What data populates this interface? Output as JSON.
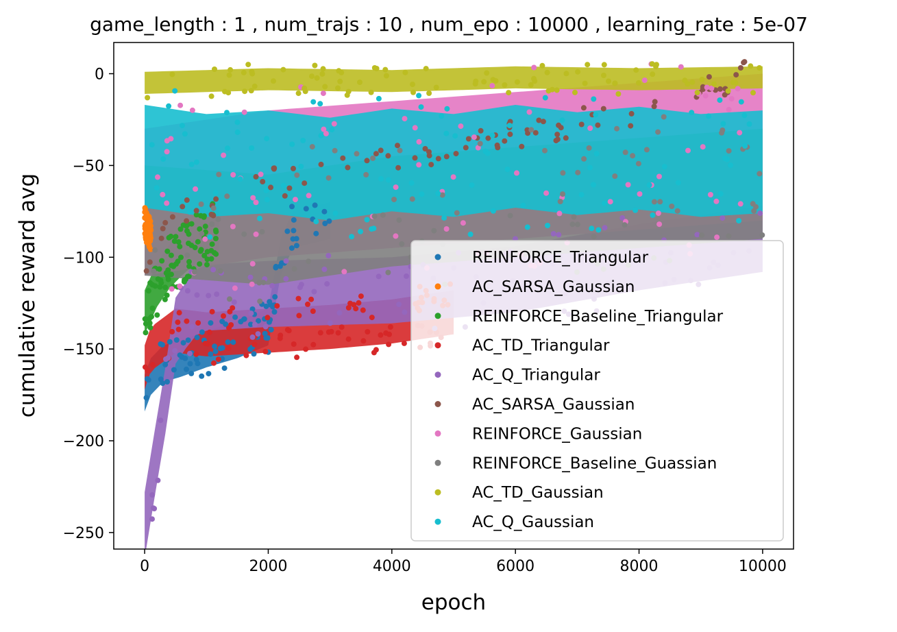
{
  "chart_data": {
    "type": "scatter",
    "title": "game_length : 1 , num_trajs : 10 , num_epo : 10000 , learning_rate : 5e-07",
    "xlabel": "epoch",
    "ylabel": "cumulative reward avg",
    "xlim": [
      -500,
      10500
    ],
    "ylim": [
      -259,
      17
    ],
    "xticks": [
      0,
      2000,
      4000,
      6000,
      8000,
      10000
    ],
    "xtick_labels": [
      "0",
      "2000",
      "4000",
      "6000",
      "8000",
      "10000"
    ],
    "yticks": [
      0,
      -50,
      -100,
      -150,
      -200,
      -250
    ],
    "ytick_labels": [
      "0",
      "−50",
      "−100",
      "−150",
      "−200",
      "−250"
    ],
    "grid": false,
    "legend_position": "lower right",
    "series": [
      {
        "name": "REINFORCE_Triangular",
        "color": "#1f77b4",
        "x": [
          0,
          100,
          300,
          600,
          1000,
          1500,
          2000,
          2200,
          2400,
          3000
        ],
        "y": [
          -174,
          -165,
          -158,
          -155,
          -150,
          -145,
          -138,
          -100,
          -85,
          -80
        ]
      },
      {
        "name": "AC_SARSA_Gaussian",
        "color": "#ff7f0e",
        "x": [
          0,
          50,
          100
        ],
        "y": [
          -81,
          -85,
          -88
        ]
      },
      {
        "name": "REINFORCE_Baseline_Triangular",
        "color": "#2ca02c",
        "x": [
          0,
          200,
          400,
          600,
          800,
          1000,
          1200
        ],
        "y": [
          -130,
          -115,
          -105,
          -98,
          -92,
          -88,
          -85
        ]
      },
      {
        "name": "AC_TD_Triangular",
        "color": "#d62728",
        "x": [
          0,
          100,
          300,
          500,
          1000,
          2000,
          3000,
          4000,
          5000
        ],
        "y": [
          -160,
          -150,
          -145,
          -140,
          -142,
          -140,
          -138,
          -135,
          -130
        ]
      },
      {
        "name": "AC_Q_Triangular",
        "color": "#9467bd",
        "x": [
          0,
          100,
          200,
          300,
          400,
          500,
          800,
          1000,
          2000,
          4000,
          6000,
          8000,
          10000
        ],
        "y": [
          -246,
          -225,
          -205,
          -185,
          -165,
          -140,
          -125,
          -122,
          -120,
          -118,
          -112,
          -100,
          -90
        ]
      },
      {
        "name": "AC_SARSA_Gaussian",
        "color": "#8c564b",
        "x": [
          0,
          200,
          400,
          600,
          2000,
          5000,
          8000,
          10000
        ],
        "y": [
          -110,
          -95,
          -85,
          -75,
          -60,
          -40,
          -20,
          2
        ]
      },
      {
        "name": "REINFORCE_Gaussian",
        "color": "#e377c2",
        "x": [
          0,
          2000,
          4000,
          6000,
          8000,
          10000
        ],
        "y": [
          -70,
          -60,
          -55,
          -50,
          -45,
          -40
        ]
      },
      {
        "name": "REINFORCE_Baseline_Guassian",
        "color": "#7f7f7f",
        "x": [
          0,
          2000,
          4000,
          6000,
          8000,
          10000
        ],
        "y": [
          -80,
          -85,
          -75,
          -70,
          -65,
          -60
        ]
      },
      {
        "name": "AC_TD_Gaussian",
        "color": "#bcbd22",
        "x": [
          0,
          2000,
          4000,
          6000,
          8000,
          10000
        ],
        "y": [
          -5,
          -3,
          -4,
          -2,
          -3,
          -2
        ]
      },
      {
        "name": "AC_Q_Gaussian",
        "color": "#17becf",
        "x": [
          0,
          1000,
          2000,
          3000,
          4000,
          5000,
          6000,
          7000,
          8000,
          9000,
          10000
        ],
        "y": [
          -45,
          -50,
          -48,
          -52,
          -47,
          -50,
          -45,
          -49,
          -46,
          -50,
          -48
        ]
      }
    ]
  }
}
